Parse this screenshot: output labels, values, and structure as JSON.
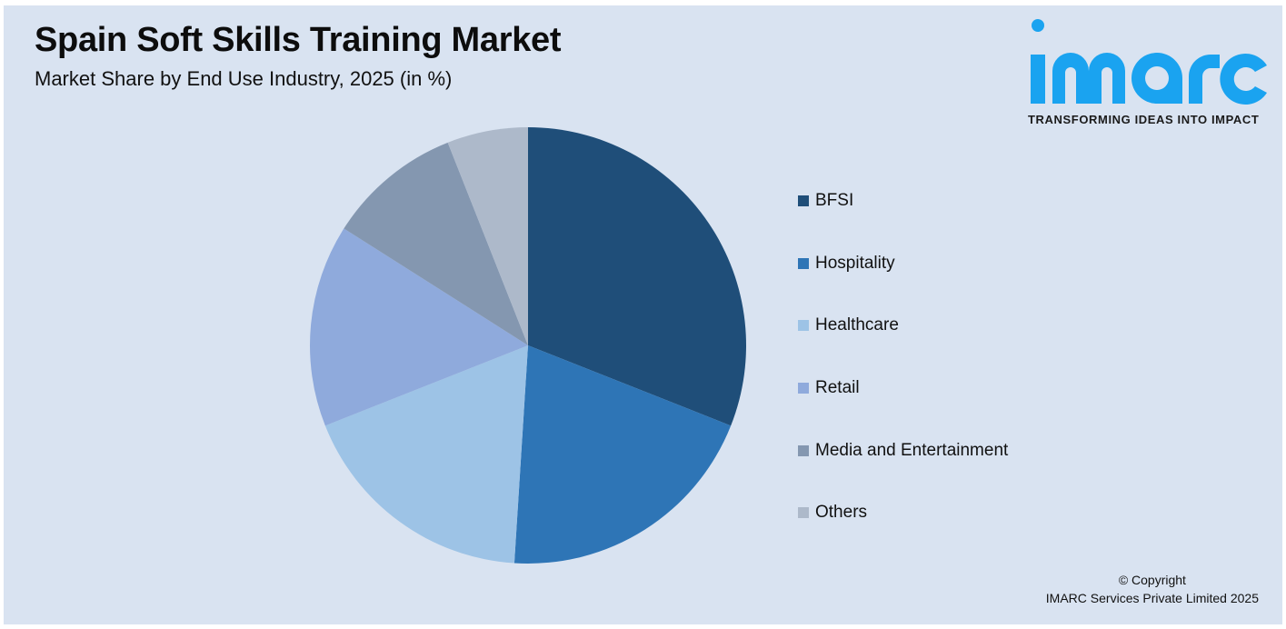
{
  "header": {
    "title": "Spain Soft Skills Training Market",
    "subtitle": "Market Share by End Use Industry, 2025 (in %)"
  },
  "logo": {
    "wordmark": "imarc",
    "tagline": "TRANSFORMING IDEAS INTO IMPACT",
    "color": "#1aa3f0"
  },
  "footer": {
    "copyright_line1": "© Copyright",
    "copyright_line2": "IMARC Services Private Limited 2025"
  },
  "chart_data": {
    "type": "pie",
    "title": "Spain Soft Skills Training Market",
    "subtitle": "Market Share by End Use Industry, 2025 (in %)",
    "categories": [
      "BFSI",
      "Hospitality",
      "Healthcare",
      "Retail",
      "Media and Entertainment",
      "Others"
    ],
    "values": [
      31,
      20,
      18,
      15,
      10,
      6
    ],
    "colors": [
      "#1f4e79",
      "#2e75b6",
      "#9dc3e6",
      "#8faadc",
      "#8497b0",
      "#adb9ca"
    ],
    "start_angle": "12 o'clock, clockwise",
    "legend_position": "right",
    "data_labels": false
  },
  "legend": {
    "items": [
      {
        "label": "BFSI",
        "color": "#1f4e79"
      },
      {
        "label": "Hospitality",
        "color": "#2e75b6"
      },
      {
        "label": "Healthcare",
        "color": "#9dc3e6"
      },
      {
        "label": "Retail",
        "color": "#8faadc"
      },
      {
        "label": "Media and Entertainment",
        "color": "#8497b0"
      },
      {
        "label": "Others",
        "color": "#adb9ca"
      }
    ]
  }
}
